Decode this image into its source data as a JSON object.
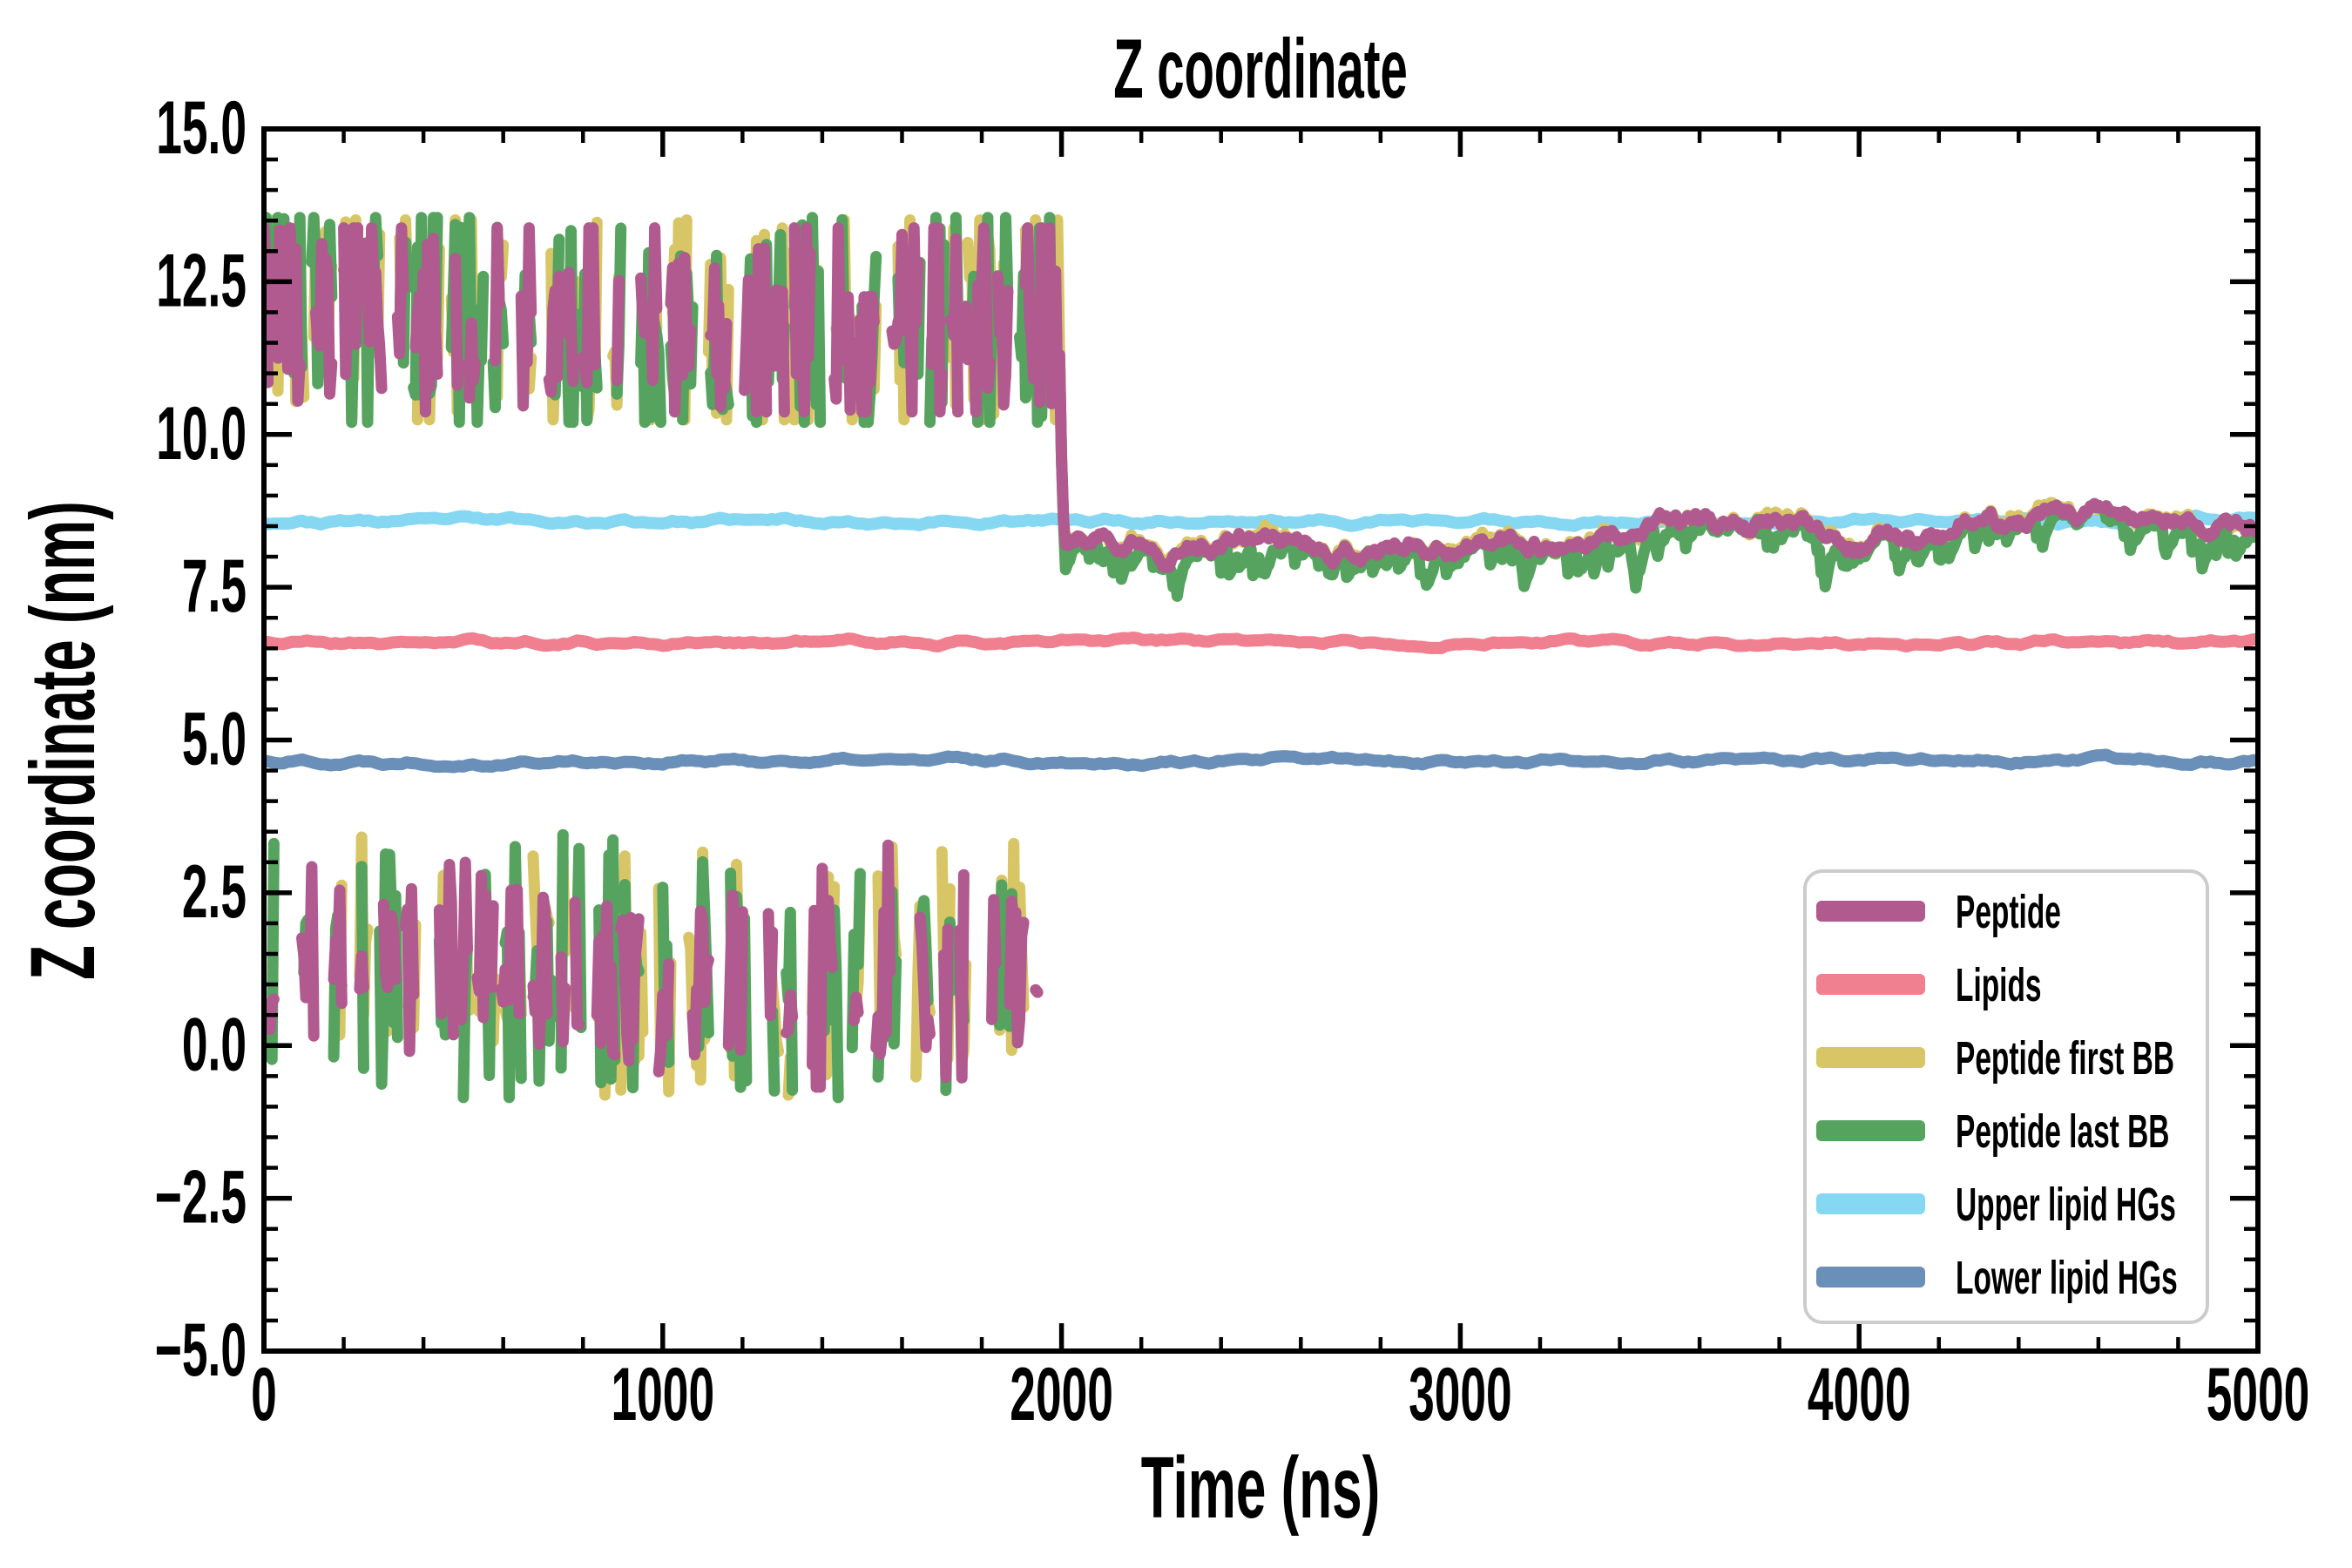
{
  "figure": {
    "title": "Z coordinate",
    "background": "#ffffff"
  },
  "axes": {
    "xlabel": "Time (ns)",
    "ylabel": "Z coordinate (nm)",
    "xlim": [
      0,
      5000
    ],
    "ylim": [
      -5.0,
      15.0
    ],
    "xticks": {
      "major": [
        0,
        1000,
        2000,
        3000,
        4000,
        5000
      ],
      "major_labels": [
        "0",
        "1000",
        "2000",
        "3000",
        "4000",
        "5000"
      ],
      "minor_step": 200
    },
    "yticks": {
      "major": [
        -5.0,
        -2.5,
        0.0,
        2.5,
        5.0,
        7.5,
        10.0,
        12.5,
        15.0
      ],
      "major_labels": [
        "−5.0",
        "−2.5",
        "0.0",
        "2.5",
        "5.0",
        "7.5",
        "10.0",
        "12.5",
        "15.0"
      ],
      "minor_step": 0.5
    },
    "spine_color": "#000000",
    "tick_color": "#000000"
  },
  "legend": {
    "background": "#ffffff",
    "border_color": "#cccccc",
    "items": [
      {
        "label": "Peptide",
        "color": "#b05a8f"
      },
      {
        "label": "Lipids",
        "color": "#f0808f"
      },
      {
        "label": "Peptide first BB",
        "color": "#d8c666"
      },
      {
        "label": "Peptide last BB",
        "color": "#55a35e"
      },
      {
        "label": "Upper lipid HGs",
        "color": "#85d7f2"
      },
      {
        "label": "Lower lipid HGs",
        "color": "#6a8fb8"
      }
    ]
  },
  "chart_data": {
    "type": "line",
    "title": "Z coordinate",
    "xlabel": "Time (ns)",
    "ylabel": "Z coordinate (nm)",
    "xlim": [
      0,
      5000
    ],
    "ylim": [
      -5.0,
      15.0
    ],
    "grid": false,
    "legend_position": "lower right",
    "time": {
      "start_ns": 0,
      "end_ns": 5000,
      "step_ns": 5
    },
    "series": [
      {
        "name": "Peptide",
        "color": "#b05a8f",
        "kind": "peptide",
        "role": "com"
      },
      {
        "name": "Lipids",
        "color": "#f0808f",
        "kind": "flat",
        "mean": 6.6,
        "wobble": 0.045
      },
      {
        "name": "Peptide first BB",
        "color": "#d8c666",
        "kind": "peptide",
        "role": "first"
      },
      {
        "name": "Peptide last BB",
        "color": "#55a35e",
        "kind": "peptide",
        "role": "last"
      },
      {
        "name": "Upper lipid HGs",
        "color": "#85d7f2",
        "kind": "flat",
        "mean": 8.58,
        "wobble": 0.045
      },
      {
        "name": "Lower lipid HGs",
        "color": "#6a8fb8",
        "kind": "flat",
        "mean": 4.66,
        "wobble": 0.045
      }
    ],
    "peptide_dynamics": {
      "transition_ns": 1990,
      "unbound_interval_ns": [
        0,
        1990
      ],
      "upper_band": [
        10.2,
        13.55
      ],
      "upper_mean": 12.0,
      "lower_band": [
        -0.85,
        3.45
      ],
      "lower_mean": 1.35,
      "bound_interval_ns": [
        1990,
        5000
      ],
      "bound_mean": 8.42,
      "bound_noise": 0.12,
      "note": "Peptide trace alternates between upper and lower periodic images before 1990 ns, then binds just below the upper lipid headgroups"
    }
  }
}
